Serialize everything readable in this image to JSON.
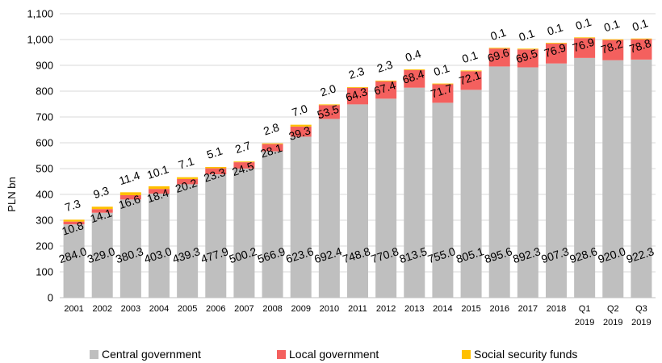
{
  "chart_data": {
    "type": "bar",
    "stacked": true,
    "title": "",
    "xlabel": "",
    "ylabel": "PLN bn",
    "ylim": [
      0,
      1100
    ],
    "yticks": [
      "0",
      "100",
      "200",
      "300",
      "400",
      "500",
      "600",
      "700",
      "800",
      "900",
      "1,000",
      "1,100"
    ],
    "grid": true,
    "legend_position": "bottom",
    "categories": [
      "2001",
      "2002",
      "2003",
      "2004",
      "2005",
      "2006",
      "2007",
      "2008",
      "2009",
      "2010",
      "2011",
      "2012",
      "2013",
      "2014",
      "2015",
      "2016",
      "2017",
      "2018",
      "Q1 2019",
      "Q2 2019",
      "Q3 2019"
    ],
    "series": [
      {
        "name": "Central government",
        "color": "#bfbfbf",
        "values": [
          284.0,
          329.0,
          380.3,
          403.0,
          439.3,
          477.9,
          500.2,
          566.9,
          623.6,
          692.4,
          748.8,
          770.8,
          813.5,
          755.0,
          805.1,
          895.6,
          892.3,
          907.3,
          928.6,
          920.0,
          922.3
        ],
        "labels": [
          "284.0",
          "329.0",
          "380.3",
          "403.0",
          "439.3",
          "477.9",
          "500.2",
          "566.9",
          "623.6",
          "692.4",
          "748.8",
          "770.8",
          "813.5",
          "755.0",
          "805.1",
          "895.6",
          "892.3",
          "907.3",
          "928.6",
          "920.0",
          "922.3"
        ]
      },
      {
        "name": "Local government",
        "color": "#f4605e",
        "values": [
          10.8,
          14.1,
          16.6,
          18.4,
          20.2,
          23.3,
          24.5,
          28.1,
          39.3,
          53.5,
          64.3,
          67.4,
          68.4,
          71.7,
          72.1,
          69.6,
          69.5,
          76.9,
          76.9,
          78.2,
          78.8
        ],
        "labels": [
          "10.8",
          "14.1",
          "16.6",
          "18.4",
          "20.2",
          "23.3",
          "24.5",
          "28.1",
          "39.3",
          "53.5",
          "64.3",
          "67.4",
          "68.4",
          "71.7",
          "72.1",
          "69.6",
          "69.5",
          "76.9",
          "76.9",
          "78.2",
          "78.8"
        ]
      },
      {
        "name": "Social security funds",
        "color": "#ffc000",
        "values": [
          7.3,
          9.3,
          11.4,
          10.1,
          7.1,
          5.1,
          2.7,
          2.8,
          7.0,
          2.0,
          2.3,
          2.3,
          0.4,
          0.1,
          0.1,
          0.1,
          0.1,
          0.1,
          0.1,
          0.1,
          0.1
        ],
        "labels": [
          "7.3",
          "9.3",
          "11.4",
          "10.1",
          "7.1",
          "5.1",
          "2.7",
          "2.8",
          "7.0",
          "2.0",
          "2.3",
          "2.3",
          "0.4",
          "0.1",
          "0.1",
          "0.1",
          "0.1",
          "0.1",
          "0.1",
          "0.1",
          "0.1"
        ]
      }
    ]
  }
}
